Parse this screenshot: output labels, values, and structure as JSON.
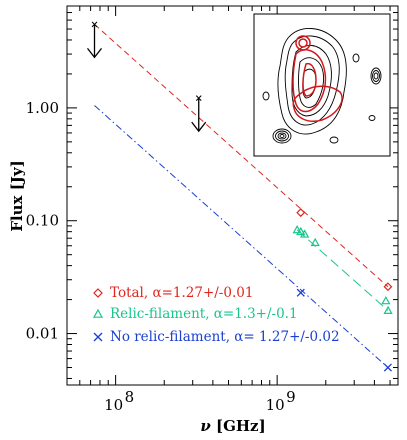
{
  "chart_data": {
    "type": "scatter",
    "xlabel": "ν [GHz]",
    "ylabel": "Flux [Jy]",
    "x_scale": "log",
    "y_scale": "log",
    "xlim": [
      0.05,
      5.6
    ],
    "ylim": [
      0.0035,
      8.0
    ],
    "x_tick_labels": [
      {
        "value": 0.1,
        "mantissa": "10",
        "exp": "8"
      },
      {
        "value": 1.0,
        "mantissa": "10",
        "exp": "9"
      }
    ],
    "y_tick_labels": [
      {
        "value": 0.01,
        "label": "0.01"
      },
      {
        "value": 0.1,
        "label": "0.10"
      },
      {
        "value": 1.0,
        "label": "1.00"
      }
    ],
    "grid": false,
    "legend_position": "bottom-left",
    "series": [
      {
        "name": "Total, α=1.27+/-0.01",
        "marker": "diamond",
        "color": "#e0261e",
        "points": [
          {
            "x": 1.4,
            "y": 0.118
          },
          {
            "x": 4.85,
            "y": 0.026
          }
        ],
        "fit_line": {
          "style": "dashed",
          "from": [
            0.074,
            5.5
          ],
          "to": [
            4.85,
            0.026
          ]
        }
      },
      {
        "name": "Relic-filament, α=1.3+/-0.1",
        "marker": "triangle",
        "color": "#19c68a",
        "points": [
          {
            "x": 1.33,
            "y": 0.083
          },
          {
            "x": 1.4,
            "y": 0.08
          },
          {
            "x": 1.48,
            "y": 0.076
          },
          {
            "x": 1.72,
            "y": 0.064
          },
          {
            "x": 4.71,
            "y": 0.0195
          },
          {
            "x": 4.86,
            "y": 0.016
          }
        ],
        "fit_line": {
          "style": "long-dashed",
          "from": [
            1.33,
            0.083
          ],
          "to": [
            4.86,
            0.016
          ]
        }
      },
      {
        "name": "No relic-filament, α= 1.27+/-0.02",
        "marker": "cross",
        "color": "#1b3fd0",
        "points": [
          {
            "x": 1.4,
            "y": 0.023
          },
          {
            "x": 4.85,
            "y": 0.005
          }
        ],
        "fit_line": {
          "style": "dash-dot",
          "from": [
            0.074,
            1.05
          ],
          "to": [
            4.85,
            0.005
          ]
        }
      }
    ],
    "upper_limits": [
      {
        "x": 0.074,
        "y": 5.5
      },
      {
        "x": 0.327,
        "y": 1.22
      }
    ]
  },
  "inset": {
    "description_icon": "radio-contour-map-icon"
  }
}
